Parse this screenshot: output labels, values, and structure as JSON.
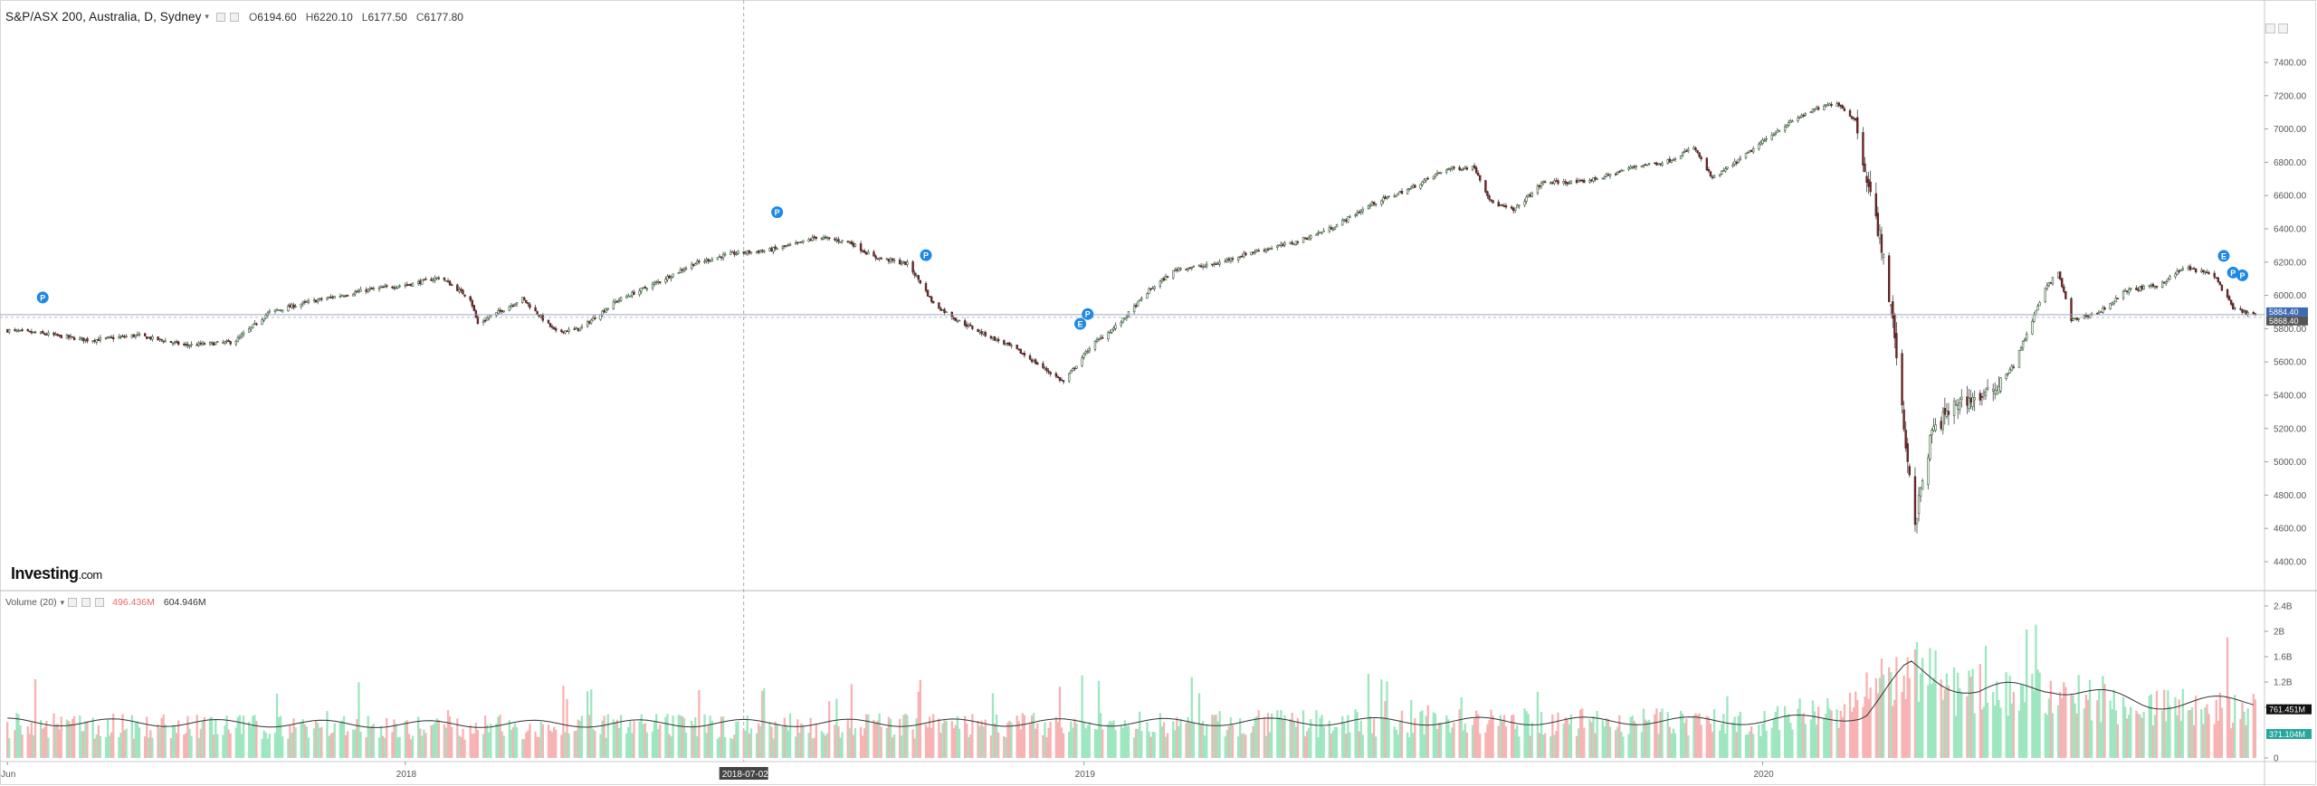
{
  "header": {
    "symbol": "S&P/ASX 200, Australia, D, Sydney",
    "open": "6194.60",
    "high": "6220.10",
    "low": "6177.50",
    "close": "6177.80"
  },
  "volume_header": {
    "label": "Volume (20)",
    "value1": "496.436M",
    "value2": "604.946M"
  },
  "logo": {
    "main": "Investing",
    "suffix": ".com"
  },
  "colors": {
    "up": "#26a69a",
    "down": "#ef5350",
    "vol_up": "#9ee6c0",
    "vol_down": "#f7b3b3",
    "ma_line": "#333333",
    "current_tag": "#3d6bb3",
    "crosshair_tag": "#555555"
  },
  "chart_data": [
    {
      "type": "line",
      "title": "S&P/ASX 200, Australia, D, Sydney",
      "series": [
        {
          "name": "S&P/ASX 200",
          "x": [
            "2017-06-01",
            "2017-06-20",
            "2017-07-15",
            "2017-08-10",
            "2017-09-05",
            "2017-10-01",
            "2017-10-20",
            "2017-11-10",
            "2017-12-10",
            "2018-01-05",
            "2018-01-20",
            "2018-02-05",
            "2018-02-09",
            "2018-03-05",
            "2018-03-23",
            "2018-04-05",
            "2018-04-25",
            "2018-05-15",
            "2018-06-05",
            "2018-06-25",
            "2018-07-15",
            "2018-07-31",
            "2018-08-10",
            "2018-08-28",
            "2018-09-10",
            "2018-09-28",
            "2018-10-05",
            "2018-10-12",
            "2018-10-25",
            "2018-11-08",
            "2018-11-25",
            "2018-12-12",
            "2018-12-21",
            "2019-01-05",
            "2019-01-20",
            "2019-02-05",
            "2019-02-20",
            "2019-03-10",
            "2019-04-01",
            "2019-04-25",
            "2019-05-15",
            "2019-06-05",
            "2019-06-25",
            "2019-07-15",
            "2019-07-30",
            "2019-08-08",
            "2019-08-20",
            "2019-09-05",
            "2019-09-25",
            "2019-10-10",
            "2019-10-25",
            "2019-11-10",
            "2019-11-25",
            "2019-12-05",
            "2019-12-20",
            "2020-01-10",
            "2020-01-25",
            "2020-02-10",
            "2020-02-20",
            "2020-02-28",
            "2020-03-05",
            "2020-03-12",
            "2020-03-16",
            "2020-03-23",
            "2020-04-01",
            "2020-04-15",
            "2020-05-01",
            "2020-05-15",
            "2020-06-01",
            "2020-06-08",
            "2020-06-15",
            "2020-06-30",
            "2020-07-15",
            "2020-08-01",
            "2020-08-15",
            "2020-08-31",
            "2020-09-10",
            "2020-09-22"
          ],
          "values": [
            5790,
            5770,
            5730,
            5760,
            5700,
            5720,
            5900,
            5960,
            6030,
            6070,
            6110,
            5980,
            5830,
            5980,
            5780,
            5800,
            5970,
            6070,
            6190,
            6250,
            6270,
            6310,
            6350,
            6320,
            6230,
            6190,
            6080,
            5950,
            5850,
            5770,
            5680,
            5550,
            5480,
            5700,
            5830,
            6030,
            6160,
            6180,
            6260,
            6320,
            6410,
            6550,
            6640,
            6760,
            6770,
            6560,
            6510,
            6680,
            6680,
            6720,
            6780,
            6800,
            6890,
            6700,
            6820,
            7000,
            7100,
            7160,
            7050,
            6600,
            6300,
            5760,
            5300,
            4640,
            5180,
            5360,
            5400,
            5580,
            6040,
            6140,
            5850,
            5900,
            6030,
            6060,
            6170,
            6120,
            5920,
            5880
          ]
        }
      ],
      "ylim": [
        4400,
        7400
      ],
      "y_ticks": [
        "7400.00",
        "7200.00",
        "7000.00",
        "6800.00",
        "6600.00",
        "6400.00",
        "6200.00",
        "6000.00",
        "5800.00",
        "5600.00",
        "5400.00",
        "5200.00",
        "5000.00",
        "4800.00",
        "4600.00",
        "4400.00"
      ],
      "x_ticks": [
        "Jun",
        "2018",
        "2019",
        "2020"
      ],
      "crosshair_label": "2018-07-02",
      "current_price_labels": [
        "5884.40",
        "5868.40"
      ],
      "markers": [
        {
          "x": "2017-06-20",
          "label": "P"
        },
        {
          "x": "2018-07-20",
          "label": "P"
        },
        {
          "x": "2018-10-08",
          "label": "P"
        },
        {
          "x": "2018-12-30",
          "label": "E"
        },
        {
          "x": "2019-01-03",
          "label": "P"
        },
        {
          "x": "2020-09-05",
          "label": "E"
        },
        {
          "x": "2020-09-10",
          "label": "P"
        },
        {
          "x": "2020-09-15",
          "label": "P"
        }
      ]
    },
    {
      "type": "bar",
      "title": "Volume (20)",
      "ylim": [
        0,
        2400000000
      ],
      "y_ticks": [
        "2.4B",
        "2B",
        "1.6B",
        "1.2B",
        "800M",
        "0"
      ],
      "last_labels": [
        "761.451M",
        "371.104M"
      ],
      "volume_profile": {
        "x": [
          "2017-06-01",
          "2018-01-01",
          "2018-07-01",
          "2019-01-01",
          "2019-07-01",
          "2020-01-01",
          "2020-02-20",
          "2020-03-15",
          "2020-04-15",
          "2020-06-01",
          "2020-07-15",
          "2020-09-22"
        ],
        "values": [
          550000000,
          520000000,
          540000000,
          560000000,
          600000000,
          620000000,
          900000000,
          1500000000,
          1200000000,
          1100000000,
          900000000,
          800000000
        ]
      },
      "ma_profile": {
        "x": [
          "2017-06-01",
          "2018-01-01",
          "2018-07-01",
          "2019-01-01",
          "2019-07-01",
          "2020-01-01",
          "2020-02-25",
          "2020-03-20",
          "2020-04-25",
          "2020-06-05",
          "2020-07-25",
          "2020-09-22"
        ],
        "values": [
          600000000,
          560000000,
          580000000,
          590000000,
          610000000,
          620000000,
          700000000,
          1500000000,
          1100000000,
          1200000000,
          900000000,
          950000000
        ]
      }
    }
  ]
}
